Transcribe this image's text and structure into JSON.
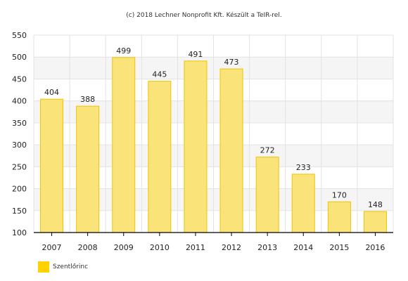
{
  "credit": "(c) 2018 Lechner Nonprofit Kft. Készült a TeIR-rel.",
  "colors": {
    "bar_fill": "#fae47a",
    "bar_stroke": "#f2c200",
    "legend_swatch": "#ffd200",
    "band_alt": "#f5f5f5",
    "grid": "#e3e3e3",
    "axis": "#000000"
  },
  "chart_data": {
    "type": "bar",
    "categories": [
      "2007",
      "2008",
      "2009",
      "2010",
      "2011",
      "2012",
      "2013",
      "2014",
      "2015",
      "2016"
    ],
    "series": [
      {
        "name": "Szentlőrinc",
        "values": [
          404,
          388,
          499,
          445,
          491,
          473,
          272,
          233,
          170,
          148
        ]
      }
    ],
    "ylim": [
      100,
      550
    ],
    "yticks": [
      100,
      150,
      200,
      250,
      300,
      350,
      400,
      450,
      500,
      550
    ],
    "data_labels": true,
    "grid": true,
    "legend_position": "bottom-left",
    "title": "",
    "xlabel": "",
    "ylabel": ""
  }
}
